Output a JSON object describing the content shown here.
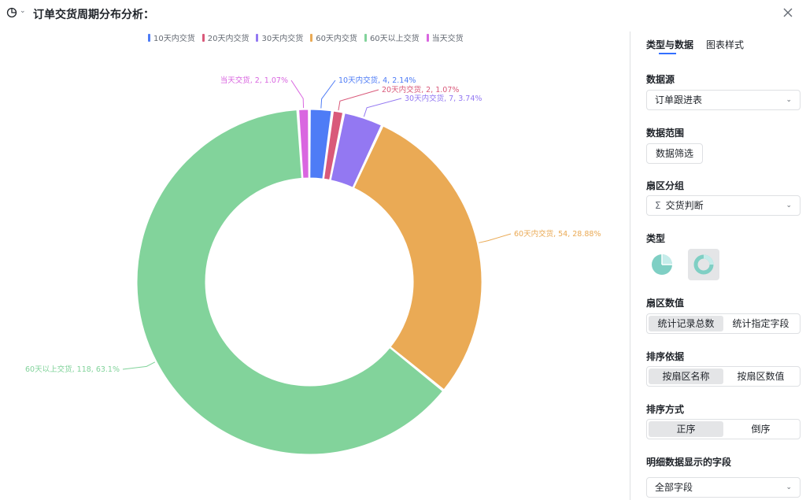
{
  "header": {
    "title": "订单交货周期分布分析："
  },
  "chart_data": {
    "type": "pie",
    "title": "订单交货周期分布分析：",
    "donut": true,
    "legend_position": "top",
    "slices": [
      {
        "name": "10天内交货",
        "value": 4,
        "percent": "2.14%",
        "label": "10天内交货, 4, 2.14%",
        "color": "#4e7cf6"
      },
      {
        "name": "20天内交货",
        "value": 2,
        "percent": "1.07%",
        "label": "20天内交货, 2, 1.07%",
        "color": "#d9597a"
      },
      {
        "name": "30天内交货",
        "value": 7,
        "percent": "3.74%",
        "label": "30天内交货, 7, 3.74%",
        "color": "#9378f2"
      },
      {
        "name": "60天内交货",
        "value": 54,
        "percent": "28.88%",
        "label": "60天内交货, 54, 28.88%",
        "color": "#eaaa55"
      },
      {
        "name": "60天以上交货",
        "value": 118,
        "percent": "63.1%",
        "label": "60天以上交货, 118, 63.1%",
        "color": "#82d39b"
      },
      {
        "name": "当天交货",
        "value": 2,
        "percent": "1.07%",
        "label": "当天交货, 2, 1.07%",
        "color": "#d966e0"
      }
    ]
  },
  "panel": {
    "tabs": [
      "类型与数据",
      "图表样式"
    ],
    "data_source_label": "数据源",
    "data_source_value": "订单跟进表",
    "data_range_label": "数据范围",
    "data_filter_button": "数据筛选",
    "group_label": "扇区分组",
    "group_value": "交货判断",
    "type_label": "类型",
    "type_options": [
      "pie-chart-icon",
      "donut-chart-icon"
    ],
    "value_label": "扇区数值",
    "value_options": [
      "统计记录总数",
      "统计指定字段"
    ],
    "sort_by_label": "排序依据",
    "sort_by_options": [
      "按扇区名称",
      "按扇区数值"
    ],
    "sort_order_label": "排序方式",
    "sort_order_options": [
      "正序",
      "倒序"
    ],
    "fields_label": "明细数据显示的字段",
    "fields_value": "全部字段"
  }
}
